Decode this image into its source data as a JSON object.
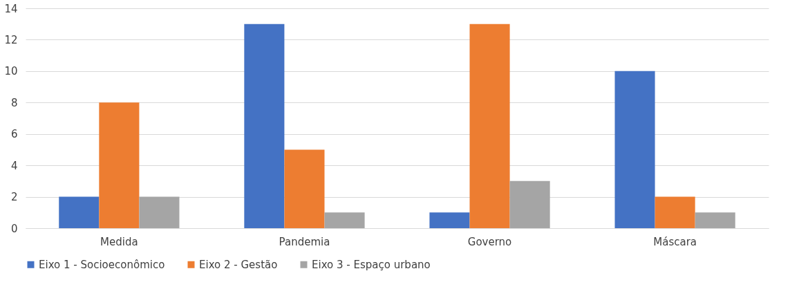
{
  "chart_data": {
    "type": "bar",
    "categories": [
      "Medida",
      "Pandemia",
      "Governo",
      "Máscara"
    ],
    "series": [
      {
        "name": "Eixo 1 - Socioeconômico",
        "color": "#4472c4",
        "values": [
          2,
          13,
          1,
          10
        ]
      },
      {
        "name": "Eixo 2 - Gestão",
        "color": "#ed7d31",
        "values": [
          8,
          5,
          13,
          2
        ]
      },
      {
        "name": "Eixo 3 - Espaço urbano",
        "color": "#a5a5a5",
        "values": [
          2,
          1,
          3,
          1
        ]
      }
    ],
    "ylim": [
      0,
      14
    ],
    "yticks": [
      0,
      2,
      4,
      6,
      8,
      10,
      12,
      14
    ],
    "grid": "y",
    "legend": "bottom"
  }
}
